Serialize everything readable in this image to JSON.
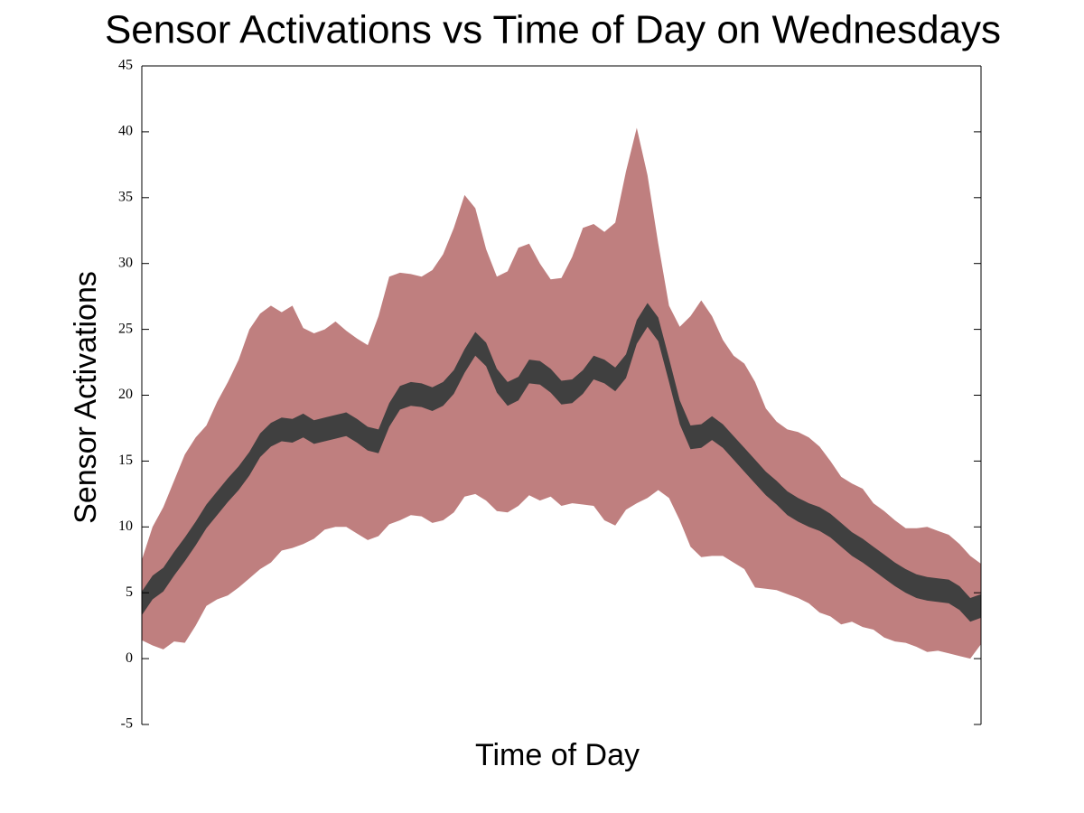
{
  "chart_data": {
    "type": "band",
    "title": "Sensor Activations vs Time of Day on Wednesdays",
    "xlabel": "Time of Day",
    "ylabel": "Sensor Activations",
    "ylim": [
      -5,
      45
    ],
    "yticks": [
      -5,
      0,
      5,
      10,
      15,
      20,
      25,
      30,
      35,
      40,
      45
    ],
    "series": [
      {
        "color": "#bf7f7f",
        "upper": [
          7.5,
          10,
          11.5,
          13.5,
          15.5,
          16.8,
          17.7,
          19.5,
          21,
          22.7,
          25,
          26.2,
          26.8,
          26.3,
          26.8,
          25.1,
          24.7,
          25,
          25.6,
          24.9,
          24.3,
          23.8,
          26,
          29,
          29.3,
          29.2,
          29,
          29.5,
          30.7,
          32.7,
          35.2,
          34.2,
          31.1,
          29,
          29.4,
          31.2,
          31.5,
          30,
          28.8,
          28.9,
          30.5,
          32.7,
          33,
          32.4,
          33.1,
          37,
          40.3,
          36.7,
          31.5,
          26.8,
          25.2,
          26,
          27.2,
          26,
          24.2,
          23,
          22.4,
          21,
          19,
          18,
          17.4,
          17.2,
          16.8,
          16.1,
          15,
          13.8,
          13.3,
          12.9,
          11.8,
          11.2,
          10.5,
          9.9,
          9.9,
          10,
          9.7,
          9.4,
          8.7,
          7.8,
          7.2
        ],
        "lower": [
          1.4,
          1,
          0.7,
          1.3,
          1.2,
          2.5,
          4,
          4.5,
          4.8,
          5.4,
          6.1,
          6.8,
          7.3,
          8.2,
          8.4,
          8.7,
          9.1,
          9.8,
          10,
          10,
          9.5,
          9,
          9.3,
          10.2,
          10.5,
          10.9,
          10.8,
          10.3,
          10.5,
          11.1,
          12.3,
          12.5,
          12,
          11.2,
          11.1,
          11.6,
          12.4,
          12,
          12.3,
          11.6,
          11.8,
          11.7,
          11.6,
          10.5,
          10.1,
          11.3,
          11.8,
          12.2,
          12.8,
          12.2,
          10.5,
          8.5,
          7.7,
          7.8,
          7.8,
          7.3,
          6.8,
          5.4,
          5.3,
          5.2,
          4.9,
          4.6,
          4.2,
          3.5,
          3.2,
          2.6,
          2.8,
          2.4,
          2.2,
          1.6,
          1.3,
          1.2,
          0.9,
          0.5,
          0.6,
          0.4,
          0.2,
          0,
          1.1
        ]
      },
      {
        "color": "#404040",
        "upper": [
          5.1,
          6.3,
          6.9,
          8.1,
          9.2,
          10.4,
          11.7,
          12.7,
          13.7,
          14.6,
          15.7,
          17.1,
          17.9,
          18.3,
          18.2,
          18.6,
          18.1,
          18.3,
          18.5,
          18.7,
          18.2,
          17.6,
          17.4,
          19.4,
          20.7,
          21,
          20.9,
          20.6,
          21,
          21.9,
          23.5,
          24.8,
          24,
          22,
          21,
          21.4,
          22.7,
          22.6,
          22,
          21.1,
          21.2,
          21.9,
          23,
          22.7,
          22.1,
          23.1,
          25.7,
          27,
          25.9,
          22.8,
          19.6,
          17.7,
          17.8,
          18.4,
          17.8,
          16.9,
          16,
          15.1,
          14.2,
          13.5,
          12.7,
          12.2,
          11.8,
          11.5,
          11,
          10.3,
          9.6,
          9.1,
          8.5,
          7.9,
          7.3,
          6.8,
          6.4,
          6.2,
          6.1,
          6,
          5.5,
          4.6,
          4.9
        ],
        "lower": [
          3.3,
          4.5,
          5.1,
          6.3,
          7.4,
          8.6,
          9.9,
          10.9,
          11.9,
          12.8,
          13.9,
          15.3,
          16.1,
          16.5,
          16.4,
          16.8,
          16.3,
          16.5,
          16.7,
          16.9,
          16.4,
          15.8,
          15.6,
          17.6,
          18.9,
          19.2,
          19.1,
          18.8,
          19.2,
          20.1,
          21.7,
          23,
          22.2,
          20.2,
          19.2,
          19.6,
          20.9,
          20.8,
          20.2,
          19.3,
          19.4,
          20.1,
          21.2,
          20.9,
          20.3,
          21.3,
          23.9,
          25.2,
          24.1,
          21,
          17.8,
          15.9,
          16,
          16.6,
          16,
          15.1,
          14.2,
          13.3,
          12.4,
          11.7,
          10.9,
          10.4,
          10,
          9.7,
          9.2,
          8.5,
          7.8,
          7.3,
          6.7,
          6.1,
          5.5,
          5,
          4.6,
          4.4,
          4.3,
          4.2,
          3.7,
          2.8,
          3.1
        ]
      }
    ]
  }
}
